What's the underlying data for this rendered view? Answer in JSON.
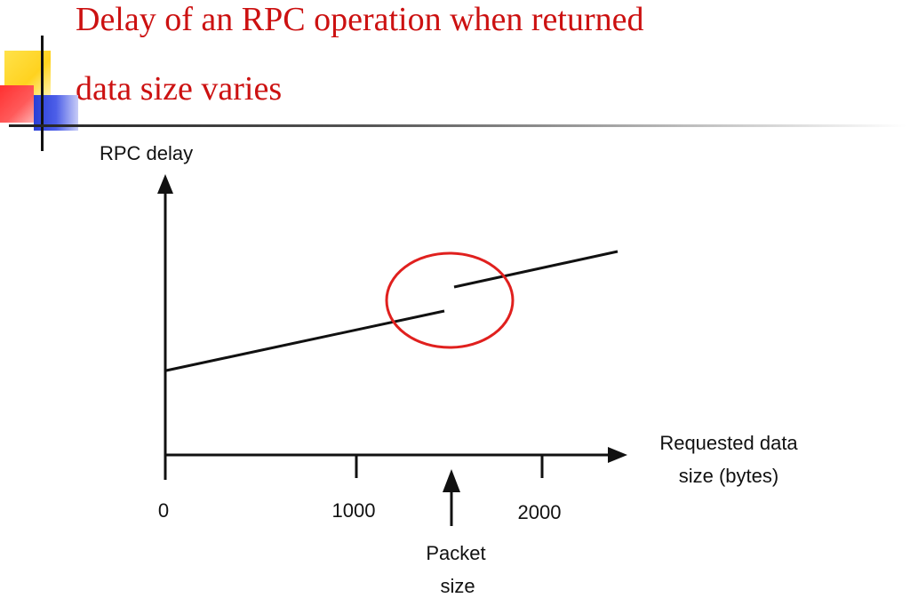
{
  "slide": {
    "title_line_1": "Delay of an RPC operation when returned",
    "title_line_2": "data size varies"
  },
  "diagram": {
    "y_axis_label": "RPC delay",
    "x_axis_label_line_1": "Requested data",
    "x_axis_label_line_2": "size (bytes)",
    "tick_labels": [
      "0",
      "1000",
      "2000"
    ],
    "annotation_line_1": "Packet",
    "annotation_line_2": "size",
    "highlight_color": "#e0201e",
    "line_color": "#111111",
    "title_color": "#cc1111"
  }
}
